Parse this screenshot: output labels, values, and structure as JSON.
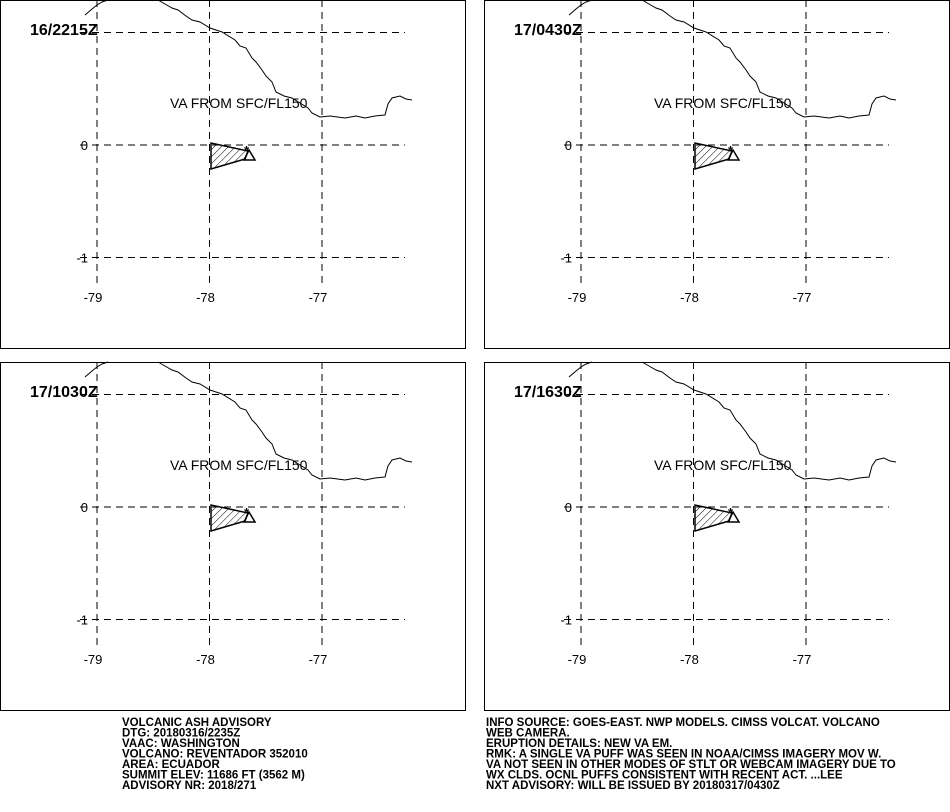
{
  "panels": [
    {
      "time": "16/2215Z",
      "label": "VA FROM SFC/FL150"
    },
    {
      "time": "17/0430Z",
      "label": "VA FROM SFC/FL150"
    },
    {
      "time": "17/1030Z",
      "label": "VA FROM SFC/FL150"
    },
    {
      "time": "17/1630Z",
      "label": "VA FROM SFC/FL150"
    }
  ],
  "lat_ticks": [
    0,
    -1
  ],
  "lon_ticks": [
    -79,
    -78,
    -77
  ],
  "advisory_left": [
    "VOLCANIC ASH ADVISORY",
    "DTG: 20180316/2235Z",
    "VAAC: WASHINGTON",
    "VOLCANO: REVENTADOR 352010",
    "AREA: ECUADOR",
    "SUMMIT ELEV: 11686 FT (3562 M)",
    "ADVISORY NR: 2018/271"
  ],
  "advisory_right": [
    "INFO SOURCE: GOES-EAST. NWP MODELS. CIMSS VOLCAT. VOLCANO",
    "WEB CAMERA.",
    "ERUPTION DETAILS: NEW VA EM.",
    "RMK: A SINGLE VA PUFF WAS SEEN IN NOAA/CIMSS IMAGERY MOV W.",
    "VA NOT SEEN IN OTHER MODES OF STLT OR WEBCAM IMAGERY DUE TO",
    "WX CLDS. OCNL PUFFS CONSISTENT WITH RECENT ACT. ...LEE",
    "NXT ADVISORY: WILL BE ISSUED BY 20180317/0430Z"
  ]
}
